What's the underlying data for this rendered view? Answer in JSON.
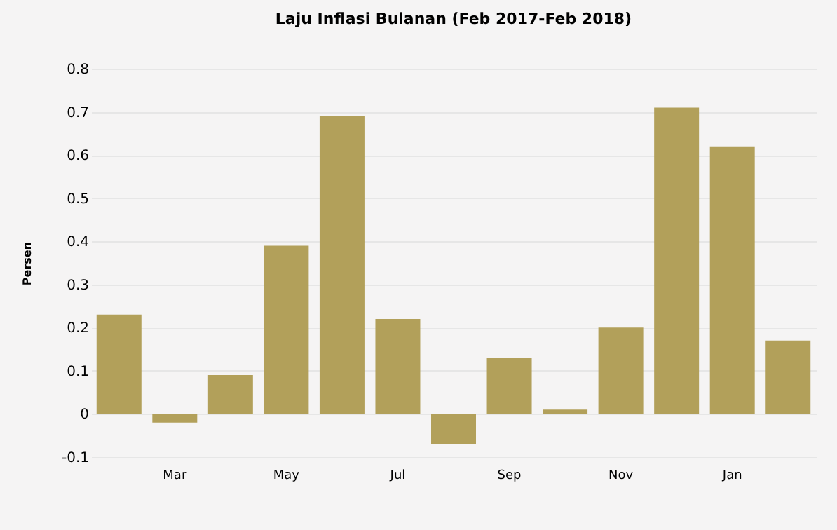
{
  "chart_data": {
    "type": "bar",
    "title": "Laju Inflasi Bulanan (Feb 2017-Feb 2018)",
    "ylabel": "Persen",
    "categories": [
      null,
      "Mar",
      null,
      "May",
      null,
      "Jul",
      null,
      "Sep",
      null,
      "Nov",
      null,
      "Jan",
      null
    ],
    "values": [
      0.23,
      -0.02,
      0.09,
      0.39,
      0.69,
      0.22,
      -0.07,
      0.13,
      0.01,
      0.2,
      0.71,
      0.62,
      0.17
    ],
    "color": "#b2a05a",
    "ylim": [
      -0.1,
      0.8
    ],
    "yticks": [
      -0.1,
      0,
      0.1,
      0.2,
      0.3,
      0.4,
      0.5,
      0.6,
      0.7,
      0.8
    ],
    "grid": "y"
  }
}
